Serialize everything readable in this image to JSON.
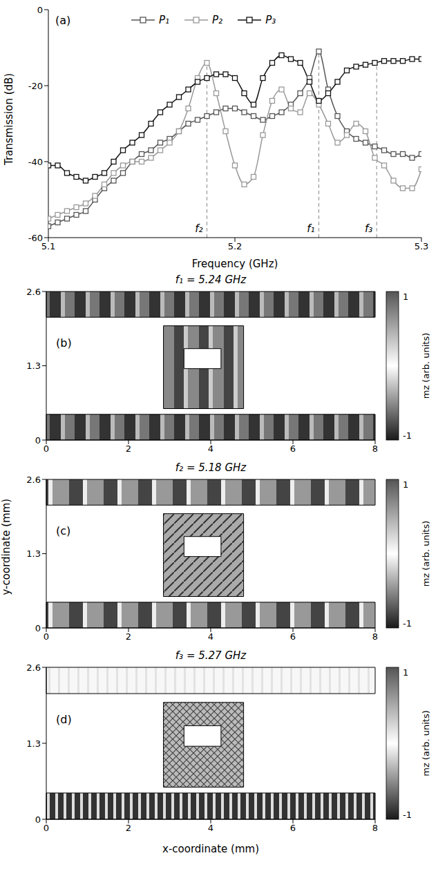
{
  "chart_data": [
    {
      "type": "line",
      "panel": "(a)",
      "x_label": "Frequency  (GHz)",
      "y_label": "Transmission (dB)",
      "xlim": [
        5.1,
        5.3
      ],
      "xticks": [
        5.1,
        5.2,
        5.3
      ],
      "ylim": [
        -60,
        0
      ],
      "yticks": [
        -60,
        -40,
        -20,
        0
      ],
      "legend": "top",
      "x": [
        5.1,
        5.105,
        5.11,
        5.115,
        5.12,
        5.125,
        5.13,
        5.135,
        5.14,
        5.145,
        5.15,
        5.155,
        5.16,
        5.165,
        5.17,
        5.175,
        5.18,
        5.185,
        5.19,
        5.195,
        5.2,
        5.205,
        5.21,
        5.215,
        5.22,
        5.225,
        5.23,
        5.235,
        5.24,
        5.245,
        5.25,
        5.255,
        5.26,
        5.265,
        5.27,
        5.275,
        5.28,
        5.285,
        5.29,
        5.295,
        5.3
      ],
      "series": [
        {
          "name": "P₁",
          "color": "#555555",
          "marker": "square",
          "values": [
            -57,
            -56,
            -55,
            -54,
            -53,
            -50,
            -47,
            -45,
            -43,
            -40,
            -38,
            -37,
            -35,
            -34,
            -32,
            -30,
            -29,
            -28,
            -27,
            -26,
            -26,
            -27,
            -28,
            -29,
            -28,
            -27,
            -25,
            -22,
            -18,
            -11,
            -21,
            -28,
            -32,
            -34,
            -35,
            -36,
            -37,
            -38,
            -38,
            -39,
            -38
          ]
        },
        {
          "name": "P₂",
          "color": "#999999",
          "marker": "square",
          "values": [
            -55,
            -54,
            -53,
            -52,
            -51,
            -49,
            -46,
            -43,
            -41,
            -40,
            -40,
            -39,
            -37,
            -35,
            -32,
            -26,
            -18,
            -14,
            -22,
            -32,
            -41,
            -46,
            -44,
            -33,
            -24,
            -21,
            -26,
            -27,
            -22,
            -25,
            -30,
            -35,
            -33,
            -30,
            -32,
            -39,
            -41,
            -45,
            -47,
            -47,
            -42
          ]
        },
        {
          "name": "P₃",
          "color": "#111111",
          "marker": "square",
          "values": [
            -41,
            -41,
            -43,
            -44,
            -45,
            -44,
            -43,
            -40,
            -37,
            -35,
            -33,
            -30,
            -27,
            -25,
            -23,
            -21,
            -19,
            -18,
            -17,
            -17,
            -18,
            -22,
            -25,
            -18,
            -14,
            -12,
            -13,
            -14,
            -19,
            -24,
            -22,
            -19,
            -16,
            -15,
            -14.5,
            -14,
            -13.5,
            -13.5,
            -13.5,
            -13,
            -13
          ]
        }
      ],
      "annotations": [
        {
          "text": "f₂",
          "x": 5.185,
          "y": -14
        },
        {
          "text": "f₁",
          "x": 5.245,
          "y": -11
        },
        {
          "text": "f₃",
          "x": 5.276,
          "y": -14
        }
      ]
    },
    {
      "type": "heatmap",
      "panel": "(b)",
      "title": "f₁ = 5.24 GHz",
      "xlim": [
        0,
        8
      ],
      "xticks": [
        0,
        2,
        4,
        6,
        8
      ],
      "ylim": [
        0,
        2.6
      ],
      "yticks": [
        0,
        1.3,
        2.6
      ],
      "regions": [
        {
          "x": [
            0,
            8
          ],
          "y": [
            2.15,
            2.6
          ]
        },
        {
          "x": [
            0,
            8
          ],
          "y": [
            0,
            0.45
          ]
        },
        {
          "x": [
            2.85,
            4.8
          ],
          "y": [
            0.55,
            2.0
          ]
        }
      ],
      "holes": [
        {
          "x": [
            3.35,
            4.25
          ],
          "y": [
            1.25,
            1.6
          ]
        }
      ],
      "colorbar": {
        "label": "mz (arb. units)",
        "range": [
          -1,
          1
        ],
        "ticks": [
          -1,
          1
        ]
      }
    },
    {
      "type": "heatmap",
      "panel": "(c)",
      "title": "f₂ = 5.18 GHz",
      "y_label": "y-coordinate (mm)",
      "xlim": [
        0,
        8
      ],
      "xticks": [
        0,
        2,
        4,
        6,
        8
      ],
      "ylim": [
        0,
        2.6
      ],
      "yticks": [
        0,
        1.3,
        2.6
      ],
      "regions": [
        {
          "x": [
            0,
            8
          ],
          "y": [
            2.15,
            2.6
          ]
        },
        {
          "x": [
            0,
            8
          ],
          "y": [
            0,
            0.45
          ]
        },
        {
          "x": [
            2.85,
            4.8
          ],
          "y": [
            0.55,
            2.0
          ]
        }
      ],
      "holes": [
        {
          "x": [
            3.35,
            4.25
          ],
          "y": [
            1.25,
            1.6
          ]
        }
      ],
      "colorbar": {
        "label": "mz (arb. units)",
        "range": [
          -1,
          1
        ],
        "ticks": [
          -1,
          1
        ]
      }
    },
    {
      "type": "heatmap",
      "panel": "(d)",
      "title": "f₃ = 5.27 GHz",
      "x_label": "x-coordinate (mm)",
      "xlim": [
        0,
        8
      ],
      "xticks": [
        0,
        2,
        4,
        6,
        8
      ],
      "ylim": [
        0,
        2.6
      ],
      "yticks": [
        0,
        1.3,
        2.6
      ],
      "regions": [
        {
          "x": [
            0,
            8
          ],
          "y": [
            2.15,
            2.6
          ]
        },
        {
          "x": [
            0,
            8
          ],
          "y": [
            0,
            0.45
          ]
        },
        {
          "x": [
            2.85,
            4.8
          ],
          "y": [
            0.55,
            2.0
          ]
        }
      ],
      "holes": [
        {
          "x": [
            3.35,
            4.25
          ],
          "y": [
            1.25,
            1.6
          ]
        }
      ],
      "colorbar": {
        "label": "mz (arb. units)",
        "range": [
          -1,
          1
        ],
        "ticks": [
          -1,
          1
        ]
      }
    }
  ]
}
